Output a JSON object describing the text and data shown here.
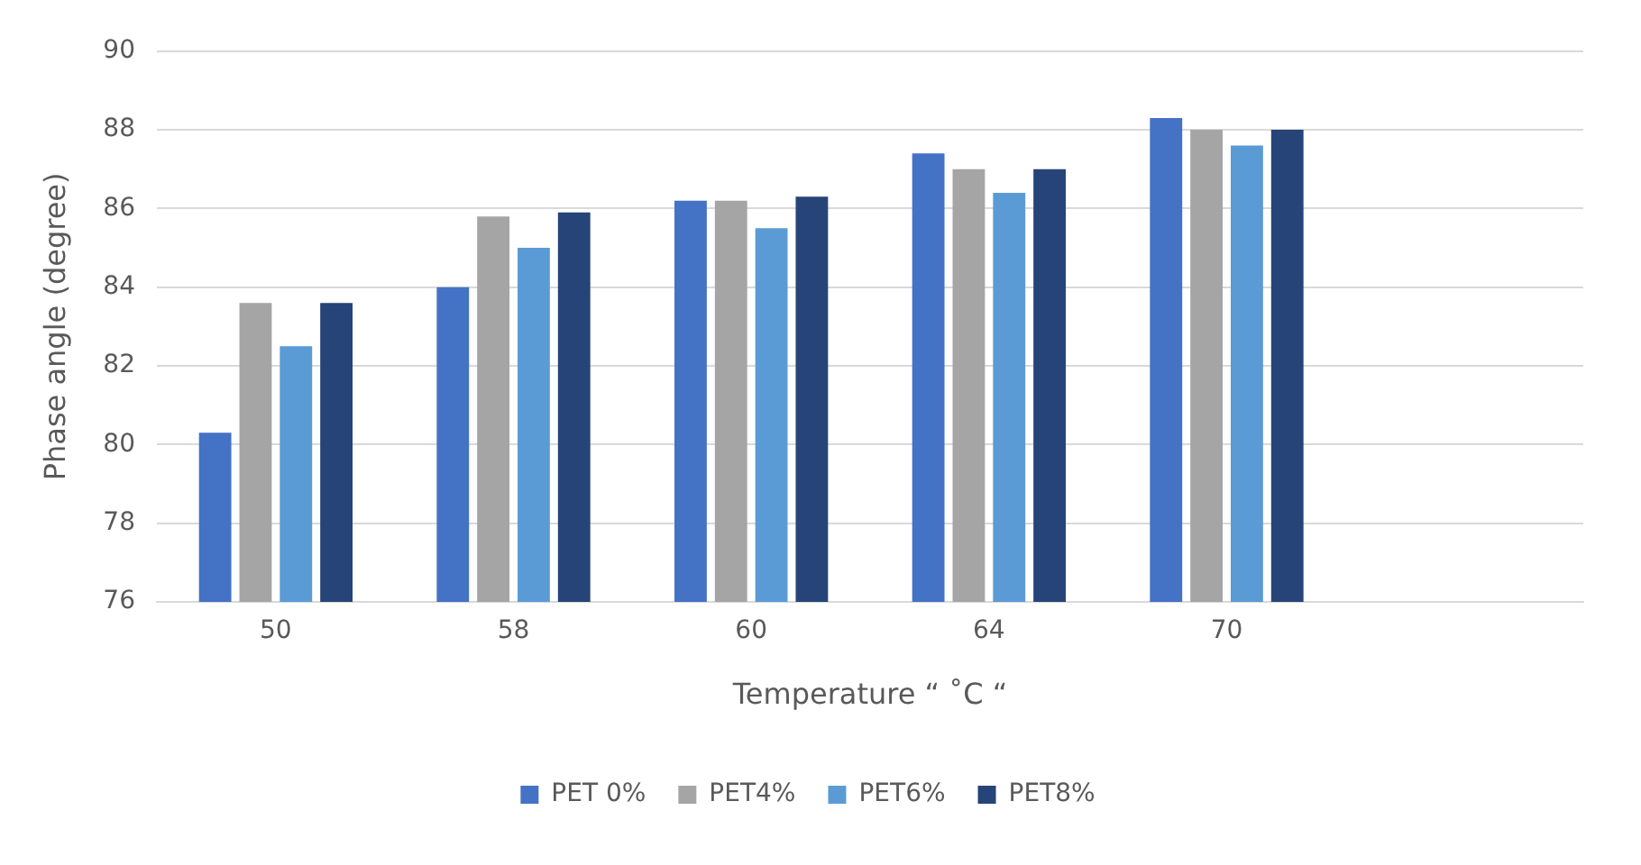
{
  "chart_data": {
    "type": "bar",
    "xlabel": "Temperature “ ˚C “",
    "ylabel": "Phase angle (degree)",
    "categories": [
      "50",
      "58",
      "60",
      "64",
      "70",
      null
    ],
    "series": [
      {
        "name": "PET 0%",
        "color": "#4472c4",
        "values": [
          80.3,
          84.0,
          86.2,
          87.4,
          88.3,
          null
        ]
      },
      {
        "name": "PET4%",
        "color": "#a5a5a5",
        "values": [
          83.6,
          85.8,
          86.2,
          87.0,
          88.0,
          null
        ]
      },
      {
        "name": "PET6%",
        "color": "#5b9bd5",
        "values": [
          82.5,
          85.0,
          85.5,
          86.4,
          87.6,
          null
        ]
      },
      {
        "name": "PET8%",
        "color": "#264478",
        "values": [
          83.6,
          85.9,
          86.3,
          87.0,
          88.0,
          null
        ]
      }
    ],
    "ylim": [
      76,
      90
    ],
    "yticks": [
      76,
      78,
      80,
      82,
      84,
      86,
      88,
      90
    ],
    "grid": "y",
    "legend": "bottom"
  }
}
